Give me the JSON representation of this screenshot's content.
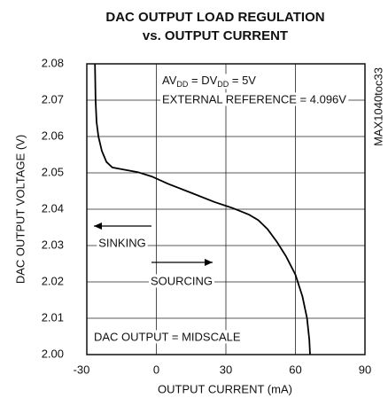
{
  "chart_data": {
    "type": "line",
    "title": [
      "DAC OUTPUT LOAD REGULATION",
      "vs. OUTPUT CURRENT"
    ],
    "xlabel": "OUTPUT CURRENT (mA)",
    "ylabel": "DAC OUTPUT VOLTAGE (V)",
    "xlim": [
      -30,
      90
    ],
    "xticks": [
      -30,
      0,
      30,
      60,
      90
    ],
    "ylim": [
      2.0,
      2.08
    ],
    "yticks": [
      {
        "value": 2.0,
        "label": "2.00"
      },
      2.01,
      2.02,
      2.03,
      2.04,
      2.05,
      2.06,
      2.07,
      2.08
    ],
    "grid": true,
    "series": [
      {
        "color": "#000000",
        "x": [
          -26.5,
          -26.2,
          -25.8,
          -25,
          -23.5,
          -21.5,
          -19,
          -15,
          -8,
          -2,
          5,
          15,
          25,
          33,
          40,
          44,
          48,
          52,
          56,
          60,
          63,
          65,
          66,
          66.3
        ],
        "values": [
          2.08,
          2.07,
          2.064,
          2.06,
          2.056,
          2.053,
          2.0515,
          2.051,
          2.0502,
          2.049,
          2.047,
          2.0445,
          2.042,
          2.0403,
          2.0385,
          2.037,
          2.0345,
          2.031,
          2.027,
          2.022,
          2.016,
          2.01,
          2.004,
          2.0
        ]
      }
    ],
    "annotations": {
      "supply": [
        "AV",
        "DD",
        " = DV",
        "DD",
        " = 5V"
      ],
      "reference": "EXTERNAL REFERENCE = 4.096V",
      "sinking": "SINKING",
      "sourcing": "SOURCING",
      "midscale": "DAC OUTPUT = MIDSCALE",
      "code": "MAX1040toc33"
    }
  }
}
